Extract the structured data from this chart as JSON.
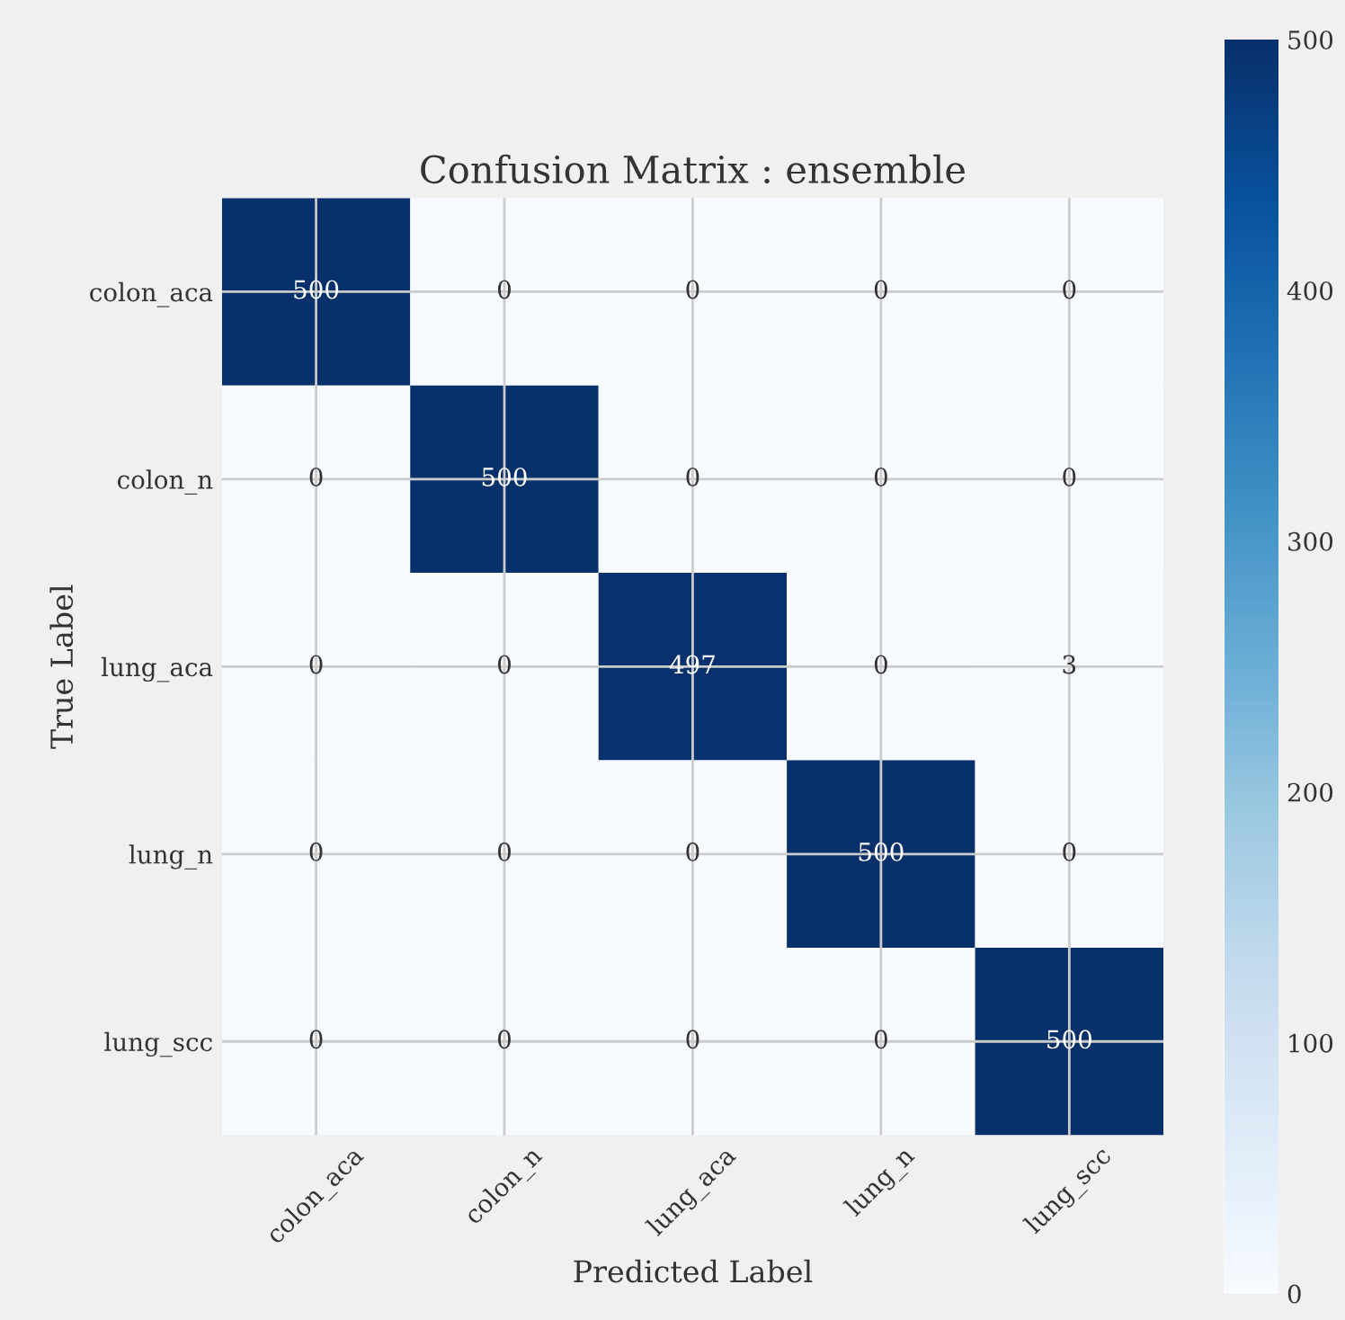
{
  "chart_data": {
    "type": "heatmap",
    "title": "Confusion Matrix : ensemble",
    "xlabel": "Predicted Label",
    "ylabel": "True Label",
    "categories": [
      "colon_aca",
      "colon_n",
      "lung_aca",
      "lung_n",
      "lung_scc"
    ],
    "y_categories": [
      "colon_aca",
      "colon_n",
      "lung_aca",
      "lung_n",
      "lung_scc"
    ],
    "cells": [
      [
        500,
        0,
        0,
        0,
        0
      ],
      [
        0,
        500,
        0,
        0,
        0
      ],
      [
        0,
        0,
        497,
        0,
        3
      ],
      [
        0,
        0,
        0,
        500,
        0
      ],
      [
        0,
        0,
        0,
        0,
        500
      ]
    ],
    "clim": [
      0,
      500
    ],
    "cticks": [
      0,
      100,
      200,
      300,
      400,
      500
    ],
    "data_labels": true,
    "grid": true
  }
}
